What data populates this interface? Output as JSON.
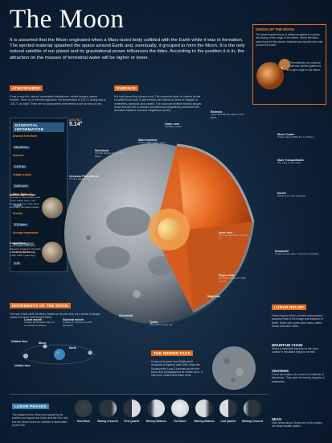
{
  "title": "The Moon",
  "intro": "It is assumed that the Moon originated when a Mars-sized body collided with the Earth while it was in formation. The ejected material splashed the space around Earth and, eventually, it grouped to form the Moon. It is the only natural satellite of our planet and its gravitational power influences the tides. According to the position it is in, the attraction on the masses of terrestrial water will be higher or lower.",
  "origin": {
    "title": "ORIGIN OF THE MOON",
    "text": "The great impact theory is widely accepted to explain the history of the origin of the Moon. When the Mars-sized body hit the planet, material was ejected into orbit around the Earth.",
    "caption": "Theoretically, the material that was ejected gathered to give origin to the Moon."
  },
  "atmosphere": {
    "head": "ATMOSPHERE",
    "text": "It has a very thin, almost nonexistent atmosphere, where humans cannot breathe. There is no thermal regulation: the temperature is 123 °C during day to -233 °C at night. There are no atmospheric phenomena such as wind or rain."
  },
  "surface": {
    "head": "SURFACE",
    "text": "It is fully formed by volcanic rock. The outermost layer is covered by the so-called lunar dust. It was formed over billions of years of impacts of meteorites, asteroids and comets. The rocks are divided into two groups: those that are rich in calcium and aluminum (highlands) and those with abundant titanium, iron and magnesium (seas)."
  },
  "essential": {
    "head": "ESSENTIAL INFORMATION",
    "rows": [
      {
        "k": "Distance from Earth",
        "v": "384,400 km"
      },
      {
        "k": "Diameter",
        "v": "3,476 km"
      },
      {
        "k": "Orbital velocity",
        "v": "3,683 km/h"
      },
      {
        "k": "Mass (Earth = 1)",
        "v": "0.012"
      },
      {
        "k": "Density",
        "v": "3.34 g/cm³"
      },
      {
        "k": "Average temperature",
        "v": "107 °C / -153 °C"
      },
      {
        "k": "Gravity (Earth = 1)",
        "v": "0.16"
      }
    ]
  },
  "axis": {
    "k": "AXIS TILT",
    "v": "5.14°"
  },
  "structure": {
    "bedrock": {
      "t": "Bedrock",
      "s": "Layer that fills the depth of the Earth."
    },
    "outer_core": {
      "t": "Outer core",
      "s": "Partially molten."
    },
    "mare_imbrium": {
      "t": "Mare Imbrium",
      "s": "It has 3,800 million years."
    },
    "schickard": {
      "t": "Schickard",
      "s": "It is the largest spot of the Moon."
    },
    "oceanus": {
      "t": "Oceanus Procellarum",
      "s": "It is the largest sea."
    },
    "crust": {
      "t": "Moon Crater",
      "s": "It has a size of 800 km to 100 km."
    },
    "mare_tranq": {
      "t": "Mare Tranquillitatis",
      "s": "The spot on the mare."
    },
    "earlier": {
      "t": "Earlier",
      "s": "Surface of rocks and dust."
    },
    "inner_core": {
      "t": "Inner core",
      "s": "Core temperature of 1,600 °C."
    },
    "rupes": {
      "t": "Rupes Altai",
      "s": "Mountain range of 1,000 meters."
    },
    "magnitus": {
      "t": "Magnitus",
      "s": ""
    },
    "tycho": {
      "t": "Tycho",
      "s": "100 million years old."
    },
    "schiebold": {
      "t": "Schiebold",
      "s": ""
    },
    "humboldt": {
      "t": "Humboldt",
      "s": "Crater named after a German naturalist."
    }
  },
  "craters_left": [
    {
      "t": "Montes Apenninus",
      "s": "Located in the northern part of the visible side of the Moon. It is one of the most important mountain ranges."
    },
    {
      "t": "Copernicus",
      "s": "It is a crater of 93 km in diameter located in the Mare Imbrium. It was formed 1,100 million years ago."
    }
  ],
  "movements": {
    "head": "MOVEMENTS OF THE MOON",
    "text": "For each Earth orbit the Moon rotates on its own axis. As a result, it always shows the same side toward Earth.",
    "lunar": {
      "t": "Lunar month",
      "s": "It takes 29.53 Earth days to complete its phases."
    },
    "sidereal": {
      "t": "Sidereal month",
      "s": "It takes 27.32 days to orbit the Earth."
    },
    "labels": {
      "hidden": "Hidden face",
      "moon": "Moon",
      "earth": "Earth",
      "visible": "Visible face"
    }
  },
  "hidden_face": {
    "head": "THE HIDDEN FACE",
    "text": "It cannot be seen from Earth and it remained a mystery until 1959, when the Soviet probe Luna 3 traveled across the Moon and photographed its hidden area. It has more craters and fewer seas."
  },
  "lunar_relief": {
    "head": "LUNAR RELIEF",
    "text": "Observing the Moon, ancient astronomers assumed that in the image and distance of Earth, these dark spots were seas, called maria, and were seas."
  },
  "mountain": {
    "head": "MOUNTAIN CHAIN",
    "text": "When a meteorite impacts on the lunar surface a mountain range is formed."
  },
  "craters": {
    "head": "CRATERS",
    "text": "There are craters of a metre to hundreds of kilometres. They were formed by impacts of meteorites."
  },
  "seas": {
    "head": "SEAS",
    "text": "Dark areas about 16 percent of its surface are large basaltic plains."
  },
  "phases": {
    "head": "LUNAR PHASES",
    "text": "The phases of the Moon are caused by its position as regards the Earth and the Sun. We see the Moon when our satellite is illuminated by the Sun.",
    "items": [
      "New Moon",
      "Waxing Crescent",
      "First Quarter",
      "Waxing Gibbous",
      "Full Moon",
      "Waning Gibbous",
      "Last Quarter",
      "Waning Crescent"
    ]
  },
  "colors": {
    "accent": "#e46a1e",
    "bg": "#0f2238",
    "mantle": "#e5702a",
    "moon": "#8e939a"
  }
}
